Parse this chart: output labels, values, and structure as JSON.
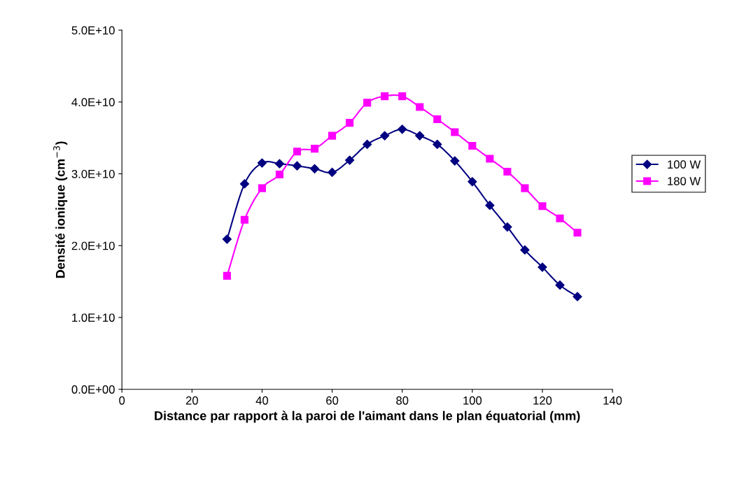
{
  "chart_data": {
    "type": "line",
    "xlabel": "Distance par rapport à la paroi de l'aimant dans le plan équatorial (mm)",
    "ylabel": "Densité ionique (cm$^{−3}$)",
    "x": [
      30,
      35,
      40,
      45,
      50,
      55,
      60,
      65,
      70,
      75,
      80,
      85,
      90,
      95,
      100,
      105,
      110,
      115,
      120,
      125,
      130
    ],
    "series": [
      {
        "name": "100 W",
        "color": "#000080",
        "marker": "diamond",
        "values": [
          20900000000,
          28600000000,
          31500000000,
          31400000000,
          31100000000,
          30700000000,
          30200000000,
          31900000000,
          34100000000,
          35300000000,
          36200000000,
          35300000000,
          34100000000,
          31800000000,
          28900000000,
          25600000000,
          22600000000,
          19400000000,
          17000000000,
          14500000000,
          12900000000
        ]
      },
      {
        "name": "180 W",
        "color": "#ff00ff",
        "marker": "square",
        "values": [
          15800000000,
          23600000000,
          28000000000,
          29900000000,
          33100000000,
          33500000000,
          35300000000,
          37100000000,
          39900000000,
          40800000000,
          40800000000,
          39300000000,
          37600000000,
          35800000000,
          33900000000,
          32100000000,
          30300000000,
          28000000000,
          25500000000,
          23800000000,
          21800000000
        ]
      }
    ],
    "xlim": [
      0,
      140
    ],
    "xticks": [
      0,
      20,
      40,
      60,
      80,
      100,
      120,
      140
    ],
    "ylim": [
      0,
      50000000000
    ],
    "yticks": [
      {
        "value": 0,
        "label": "0.0E+00"
      },
      {
        "value": 10000000000,
        "label": "1.0E+10"
      },
      {
        "value": 20000000000,
        "label": "2.0E+10"
      },
      {
        "value": 30000000000,
        "label": "3.0E+10"
      },
      {
        "value": 40000000000,
        "label": "4.0E+10"
      },
      {
        "value": 50000000000,
        "label": "5.0E+10"
      }
    ],
    "grid": false,
    "legend": "right",
    "line_style": "solid"
  }
}
